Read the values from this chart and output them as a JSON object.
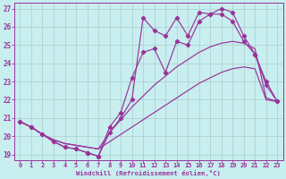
{
  "bg_color": "#c8eef0",
  "line_color": "#993399",
  "grid_color": "#aacccc",
  "xlabel": "Windchill (Refroidissement éolien,°C)",
  "xlabel_color": "#993399",
  "xlim": [
    -0.5,
    23.5
  ],
  "ylim": [
    18.7,
    27.3
  ],
  "yticks": [
    19,
    20,
    21,
    22,
    23,
    24,
    25,
    26,
    27
  ],
  "xticks": [
    0,
    1,
    2,
    3,
    4,
    5,
    6,
    7,
    8,
    9,
    10,
    11,
    12,
    13,
    14,
    15,
    16,
    17,
    18,
    19,
    20,
    21,
    22,
    23
  ],
  "smooth1": [
    20.8,
    20.5,
    20.1,
    19.8,
    19.6,
    19.5,
    19.4,
    19.3,
    19.7,
    20.1,
    20.5,
    20.9,
    21.3,
    21.7,
    22.1,
    22.5,
    22.9,
    23.2,
    23.5,
    23.7,
    23.8,
    23.7,
    22.0,
    21.9
  ],
  "smooth2": [
    20.8,
    20.5,
    20.1,
    19.8,
    19.6,
    19.5,
    19.4,
    19.3,
    20.2,
    20.9,
    21.6,
    22.2,
    22.8,
    23.3,
    23.8,
    24.2,
    24.6,
    24.9,
    25.1,
    25.2,
    25.1,
    24.8,
    22.1,
    21.9
  ],
  "marker1_x": [
    0,
    1,
    2,
    3,
    4,
    5,
    6,
    7,
    8,
    9,
    10,
    11,
    12,
    13,
    14,
    15,
    16,
    17,
    18,
    19,
    20,
    21,
    22,
    23
  ],
  "marker1_y": [
    20.8,
    20.5,
    20.1,
    19.7,
    19.4,
    19.3,
    19.1,
    18.9,
    20.5,
    21.3,
    23.2,
    24.6,
    24.8,
    23.5,
    25.2,
    25.0,
    26.3,
    26.7,
    26.7,
    26.3,
    25.2,
    24.5,
    22.8,
    21.9
  ],
  "marker2_x": [
    0,
    1,
    2,
    3,
    4,
    5,
    6,
    7,
    8,
    9,
    10,
    11,
    12,
    13,
    14,
    15,
    16,
    17,
    18,
    19,
    20,
    21,
    22,
    23
  ],
  "marker2_y": [
    20.8,
    20.5,
    20.1,
    19.7,
    19.4,
    19.3,
    19.1,
    18.9,
    20.2,
    21.0,
    22.0,
    26.5,
    25.8,
    25.5,
    26.5,
    25.5,
    26.8,
    26.7,
    27.0,
    26.8,
    25.5,
    24.5,
    23.0,
    21.9
  ]
}
